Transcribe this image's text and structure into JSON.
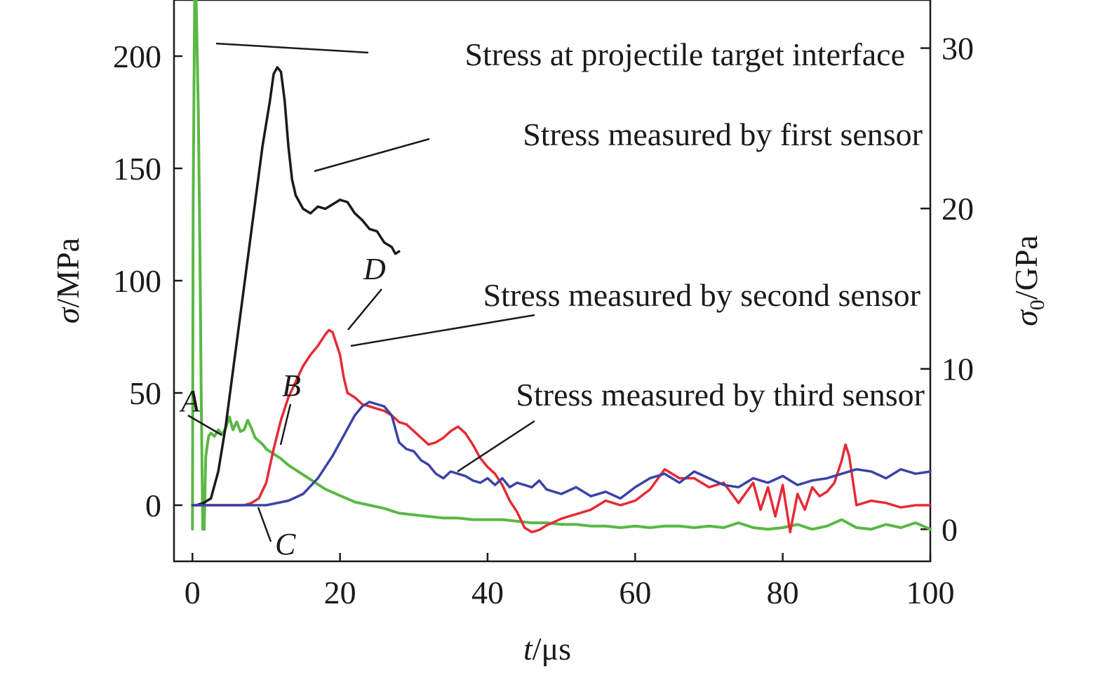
{
  "chart_data": {
    "type": "line",
    "xlabel": {
      "var": "t",
      "unit": "/μs"
    },
    "ylabel": {
      "var": "σ",
      "unit": "/MPa"
    },
    "y2label": {
      "var": "σ",
      "sub": "0",
      "unit": "/GPa"
    },
    "xlim": [
      -2.5,
      100
    ],
    "ylim": [
      -25,
      225
    ],
    "y2lim": [
      -2,
      33
    ],
    "xticks": [
      "0",
      "20",
      "40",
      "60",
      "80",
      "100"
    ],
    "xtick_values": [
      0,
      20,
      40,
      60,
      80,
      100
    ],
    "yticks": [
      "0",
      "50",
      "100",
      "150",
      "200"
    ],
    "ytick_values": [
      0,
      50,
      100,
      150,
      200
    ],
    "y2ticks": [
      "0",
      "10",
      "20",
      "30"
    ],
    "y2tick_values": [
      0,
      10,
      20,
      30
    ],
    "series": [
      {
        "key": "interface",
        "color": "#5ab845",
        "axis": "right",
        "x": [
          0.0,
          0.1,
          0.3,
          0.5,
          0.8,
          1.0,
          1.2,
          1.4,
          1.6,
          1.8,
          2.0,
          2.2,
          2.5,
          3.0,
          3.5,
          4.0,
          4.5,
          5.0,
          5.5,
          6.0,
          6.5,
          7.0,
          7.5,
          8.0,
          8.5,
          9.0,
          9.5,
          10.0,
          11.0,
          12.0,
          13.0,
          14.0,
          15.0,
          16.0,
          17.0,
          18.0,
          19.0,
          20.0,
          21.0,
          22.0,
          23.0,
          24.0,
          26.0,
          28.0,
          30.0,
          32.0,
          34.0,
          36.0,
          38.0,
          40.0,
          42.0,
          44.0,
          46.0,
          48.0,
          50.0,
          52.0,
          54.0,
          56.0,
          58.0,
          60.0,
          62.0,
          64.0,
          66.0,
          68.0,
          70.0,
          72.0,
          74.0,
          76.0,
          78.0,
          80.0,
          82.0,
          84.0,
          86.0,
          88.0,
          90.0,
          92.0,
          94.0,
          96.0,
          98.0,
          100.0
        ],
        "values": [
          0.0,
          20.0,
          33.0,
          33.0,
          26.0,
          18.0,
          8.0,
          0.0,
          0.0,
          4.5,
          5.2,
          5.8,
          6.0,
          5.8,
          6.2,
          5.9,
          6.3,
          7.0,
          6.2,
          6.7,
          6.1,
          6.2,
          6.8,
          6.3,
          5.7,
          5.5,
          5.3,
          5.0,
          4.7,
          4.4,
          4.0,
          3.7,
          3.4,
          3.1,
          2.8,
          2.5,
          2.3,
          2.1,
          1.9,
          1.7,
          1.6,
          1.5,
          1.3,
          1.0,
          0.9,
          0.8,
          0.7,
          0.7,
          0.6,
          0.6,
          0.6,
          0.5,
          0.4,
          0.4,
          0.3,
          0.3,
          0.2,
          0.2,
          0.1,
          0.2,
          0.1,
          0.2,
          0.2,
          0.1,
          0.2,
          0.1,
          0.4,
          0.1,
          0.0,
          0.1,
          0.3,
          0.0,
          0.2,
          0.6,
          0.1,
          0.0,
          0.3,
          0.1,
          0.4,
          0.0
        ]
      },
      {
        "key": "first",
        "color": "#1a1a1a",
        "axis": "left",
        "x": [
          0.5,
          1.5,
          2.5,
          3.5,
          4.5,
          5.5,
          6.5,
          7.5,
          8.5,
          9.5,
          10.5,
          11.0,
          11.5,
          12.0,
          12.5,
          13.0,
          13.5,
          14.0,
          15.0,
          16.0,
          17.0,
          18.0,
          19.0,
          20.0,
          21.0,
          22.0,
          23.0,
          24.0,
          25.0,
          26.0,
          27.0,
          27.5,
          28.0
        ],
        "values": [
          0,
          1,
          3,
          15,
          35,
          60,
          85,
          110,
          135,
          160,
          180,
          192,
          195,
          193,
          180,
          160,
          145,
          138,
          132,
          130,
          133,
          132,
          134,
          136,
          135,
          130,
          127,
          123,
          122,
          117,
          115,
          112,
          113
        ]
      },
      {
        "key": "second",
        "color": "#e52a35",
        "axis": "left",
        "x": [
          0,
          6,
          7,
          8,
          9,
          10,
          11,
          12,
          13,
          14,
          15,
          16,
          17,
          18,
          18.5,
          19,
          20,
          20.5,
          21,
          22,
          23,
          24,
          25,
          26,
          27,
          28,
          29,
          30,
          31,
          32,
          33,
          34,
          35,
          36,
          37,
          38,
          39,
          40,
          41,
          42,
          43,
          44,
          45,
          46,
          47,
          48,
          50,
          52,
          54,
          56,
          58,
          60,
          62,
          64,
          66,
          68,
          70,
          72,
          74,
          76,
          77,
          78,
          79,
          80,
          81,
          82,
          83,
          84,
          85,
          86,
          87,
          88,
          88.5,
          89,
          90,
          92,
          94,
          96,
          98,
          100
        ],
        "values": [
          0,
          0,
          0,
          1,
          3,
          10,
          25,
          38,
          48,
          55,
          62,
          67,
          71,
          76,
          78,
          77,
          67,
          57,
          50,
          48,
          45,
          44,
          43,
          42,
          40,
          37,
          36,
          33,
          30,
          27,
          28,
          30,
          33,
          35,
          32,
          27,
          21,
          17,
          14,
          9,
          2,
          -3,
          -10,
          -12,
          -11,
          -9,
          -6,
          -4,
          -2,
          2,
          0,
          2,
          7,
          16,
          12,
          12,
          8,
          10,
          1,
          10,
          -2,
          8,
          -5,
          9,
          -12,
          5,
          -2,
          8,
          4,
          6,
          10,
          20,
          27,
          22,
          0,
          2,
          1,
          -1,
          0,
          0
        ]
      },
      {
        "key": "third",
        "color": "#3a43a6",
        "axis": "left",
        "x": [
          0,
          5,
          10,
          13,
          15,
          17,
          19,
          21,
          22,
          23,
          24,
          25,
          26,
          27,
          28,
          29,
          30,
          31,
          32,
          33,
          34,
          35,
          36,
          37,
          38,
          39,
          40,
          41,
          42,
          43,
          44,
          45,
          46,
          47,
          48,
          50,
          52,
          54,
          56,
          58,
          60,
          62,
          64,
          66,
          68,
          70,
          72,
          74,
          76,
          78,
          80,
          82,
          84,
          86,
          88,
          90,
          92,
          94,
          96,
          98,
          100
        ],
        "values": [
          0,
          0,
          0,
          2,
          5,
          12,
          22,
          34,
          40,
          44,
          46,
          45,
          44,
          40,
          28,
          25,
          24,
          20,
          18,
          14,
          12,
          15,
          14,
          13,
          11,
          10,
          12,
          9,
          12,
          8,
          10,
          9,
          8,
          11,
          7,
          5,
          8,
          4,
          6,
          3,
          8,
          12,
          14,
          10,
          15,
          12,
          9,
          8,
          12,
          10,
          13,
          9,
          11,
          12,
          14,
          16,
          15,
          12,
          16,
          14,
          15
        ]
      }
    ],
    "annotations": [
      "Stress at projectile target interface",
      "Stress measured by first sensor",
      "Stress measured by second sensor",
      "Stress measured by third sensor"
    ],
    "point_labels": [
      "A",
      "B",
      "C",
      "D"
    ]
  }
}
